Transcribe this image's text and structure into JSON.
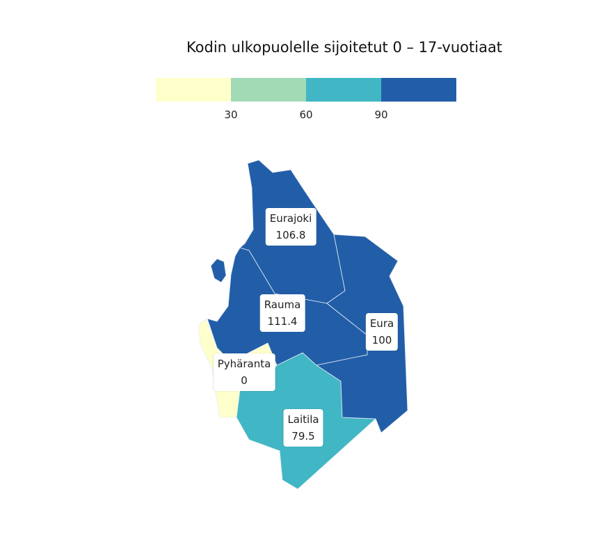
{
  "title": "Kodin ulkopuolelle sijoitetut 0 – 17-vuotiaat",
  "legend": {
    "colors": [
      "#ffffcc",
      "#a1dab4",
      "#41b6c4",
      "#225ea8"
    ],
    "ticks": [
      "30",
      "60",
      "90"
    ]
  },
  "regions": [
    {
      "name": "Eurajoki",
      "value": "106.8",
      "color": "#225ea8"
    },
    {
      "name": "Rauma",
      "value": "111.4",
      "color": "#225ea8"
    },
    {
      "name": "Eura",
      "value": "100",
      "color": "#225ea8"
    },
    {
      "name": "Pyhäranta",
      "value": "0",
      "color": "#ffffcc"
    },
    {
      "name": "Laitila",
      "value": "79.5",
      "color": "#41b6c4"
    }
  ]
}
